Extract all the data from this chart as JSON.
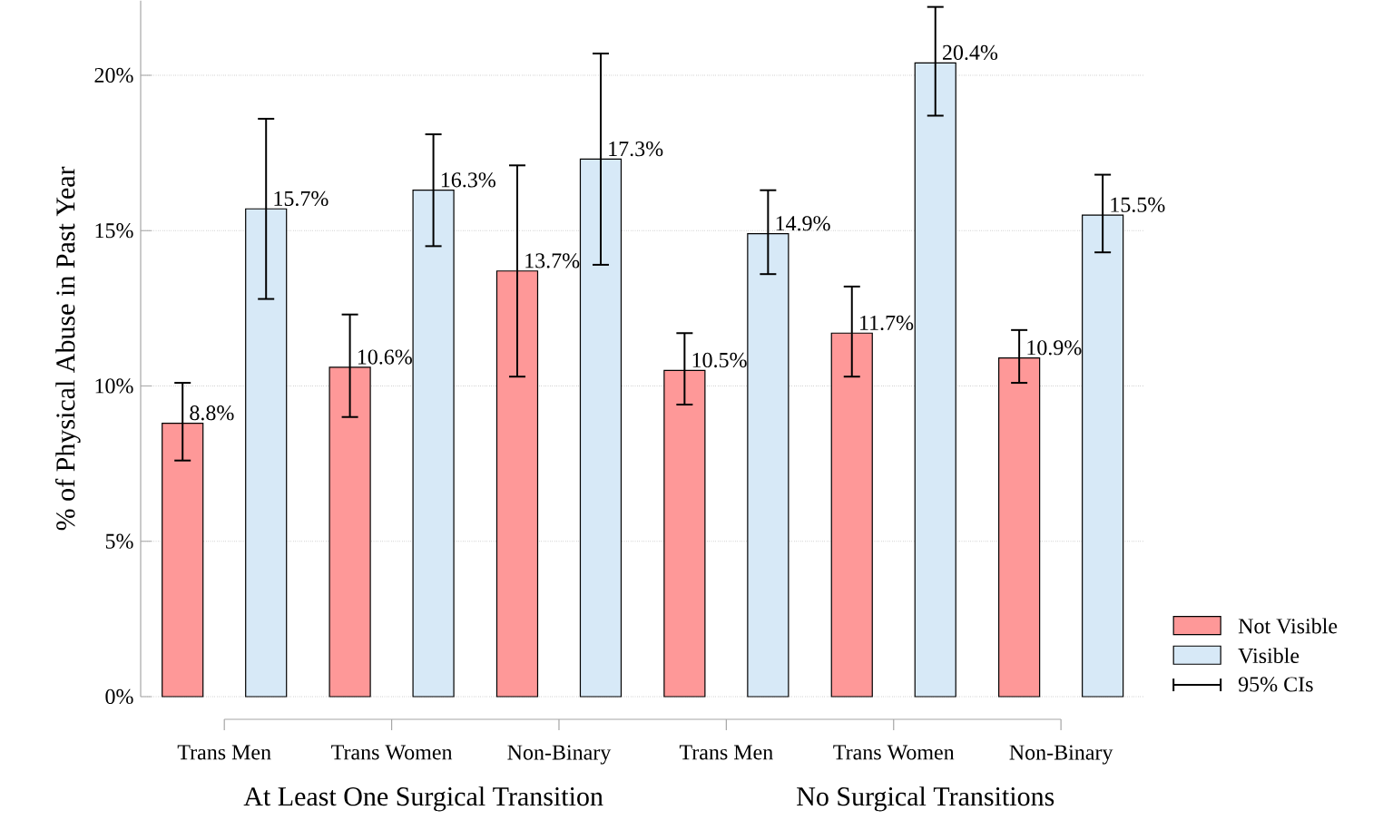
{
  "chart_data": {
    "type": "bar",
    "ylabel": "% of Physical Abuse in Past Year",
    "categories": [
      "Trans Men",
      "Trans Women",
      "Non-Binary",
      "Trans Men",
      "Trans Women",
      "Non-Binary"
    ],
    "series": [
      {
        "name": "Not Visible",
        "color": "#fe9898",
        "values": [
          8.8,
          10.6,
          13.7,
          10.5,
          11.7,
          10.9
        ],
        "value_labels": [
          "8.8%",
          "10.6%",
          "13.7%",
          "10.5%",
          "11.7%",
          "10.9%"
        ],
        "errors": [
          [
            7.6,
            10.1
          ],
          [
            9.0,
            12.3
          ],
          [
            10.3,
            17.1
          ],
          [
            9.4,
            11.7
          ],
          [
            10.3,
            13.2
          ],
          [
            10.1,
            11.8
          ]
        ]
      },
      {
        "name": "Visible",
        "color": "#d7e9f7",
        "values": [
          15.7,
          16.3,
          17.3,
          14.9,
          20.4,
          15.5
        ],
        "value_labels": [
          "15.7%",
          "16.3%",
          "17.3%",
          "14.9%",
          "20.4%",
          "15.5%"
        ],
        "errors": [
          [
            12.8,
            18.6
          ],
          [
            14.5,
            18.1
          ],
          [
            13.9,
            20.7
          ],
          [
            13.6,
            16.3
          ],
          [
            18.7,
            22.2
          ],
          [
            14.3,
            16.8
          ]
        ]
      }
    ],
    "ylim": [
      0,
      22.4
    ],
    "yticks": [
      {
        "value": 0,
        "label": "0%"
      },
      {
        "value": 5,
        "label": "5%"
      },
      {
        "value": 10,
        "label": "10%"
      },
      {
        "value": 15,
        "label": "15%"
      },
      {
        "value": 20,
        "label": "20%"
      }
    ],
    "grid": "y",
    "legend": "bottom right",
    "annotations": [
      "At Least One Surgical Transition",
      "No Surgical Transitions",
      "95% CIs"
    ]
  }
}
